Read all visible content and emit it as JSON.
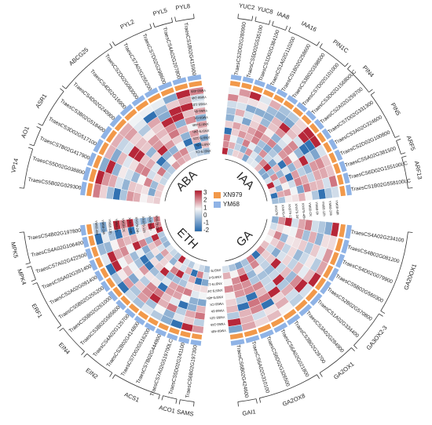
{
  "palette": {
    "low": "#2166ac",
    "mid": "#f7f7f7",
    "high": "#b2182b",
    "xn979": "#f2994a",
    "ym68": "#8fb3e6",
    "line": "#333333"
  },
  "legend": {
    "scale_ticks": [
      "3",
      "2",
      "1",
      "0",
      "-1",
      "-2"
    ],
    "cultivars": [
      {
        "label": "XN979",
        "color": "#f2994a"
      },
      {
        "label": "YM68",
        "color": "#8fb3e6"
      }
    ]
  },
  "segments": [
    {
      "name": "IAA",
      "start_deg": 0,
      "end_deg": 90,
      "samples": [
        "XN979-CK",
        "XN979-6h",
        "XN979-12h",
        "XN979-24h",
        "XN979-48h",
        "YM68-CK",
        "YM68-6h",
        "YM68-12h",
        "YM68-24h",
        "YM68-48h"
      ],
      "genes": [
        "TraesCS2D02G280900",
        "TraesCS5D02G535100",
        "TraesCS1D02G384100",
        "TraesCS1A02G110200",
        "TraesCS1B02G258600",
        "TraesCS3B02G598500",
        "TraesCS7D02G101000",
        "TraesCS3D02G156800LC",
        "TraesCS2A02G259700",
        "TraesCS7D02G331300",
        "TraesCS3A02G324600",
        "TraesCS2D02G100800",
        "TraesCS5A02G381500",
        "TraesCS6D02G155100LC",
        "TraesCS1B02G558100LC"
      ],
      "families": [
        {
          "label": "YUC2",
          "from": 0,
          "to": 0
        },
        {
          "label": "YUC8",
          "from": 1,
          "to": 1
        },
        {
          "label": "IAA8",
          "from": 2,
          "to": 2
        },
        {
          "label": "IAA16",
          "from": 3,
          "to": 4
        },
        {
          "label": "PIN1C",
          "from": 5,
          "to": 6
        },
        {
          "label": "PIN4",
          "from": 7,
          "to": 8
        },
        {
          "label": "PIN5",
          "from": 9,
          "to": 11
        },
        {
          "label": "ARF5",
          "from": 12,
          "to": 12
        },
        {
          "label": "ARF13",
          "from": 13,
          "to": 14
        }
      ]
    },
    {
      "name": "GA",
      "start_deg": 90,
      "end_deg": 180,
      "samples": [
        "XN979-CK",
        "XN979-6h",
        "XN979-12h",
        "XN979-24h",
        "XN979-48h",
        "YM68-CK",
        "YM68-6h",
        "YM68-12h",
        "YM68-24h",
        "YM68-48h"
      ],
      "genes": [
        "TraesCS4A02G234100",
        "TraesCS4B02G081200",
        "TraesCS4D02G079900",
        "TraesCS5B02G560300",
        "TraesCS2B02G570800",
        "TraesCS1A02G334400",
        "TraesCS3A02G284900",
        "TraesCS3B02G28700",
        "TraesCS6A02G021800",
        "TraesCS6D02G326500",
        "TraesCS6A02G310100",
        "TraesCS6B02G424600"
      ],
      "families": [
        {
          "label": "GA20OX1",
          "from": 0,
          "to": 3
        },
        {
          "label": "GA3OX2-3",
          "from": 4,
          "to": 5
        },
        {
          "label": "GA2OX1",
          "from": 6,
          "to": 7
        },
        {
          "label": "GA2OX8",
          "from": 8,
          "to": 10
        },
        {
          "label": "GAI1",
          "from": 11,
          "to": 11
        }
      ]
    },
    {
      "name": "ETH",
      "start_deg": 180,
      "end_deg": 270,
      "samples": [
        "XN979-CK",
        "XN979-6h",
        "XN979-12h",
        "XN979-24h",
        "XN979-48h",
        "YM68-CK",
        "YM68-6h",
        "YM68-12h",
        "YM68-24h",
        "YM68-48h"
      ],
      "genes": [
        "TraesCS6B02G197300",
        "TraesCS5D02G241100",
        "TraesCS7A02G519700LC",
        "TraesCS7B02G444900",
        "TraesCS7D02G516200",
        "TraesCS2B02G414800",
        "TraesCS4A02G125700",
        "TraesCS3B02G565600",
        "TraesCS5B02G261000",
        "TraesCS5B02G255200",
        "TraesCS2A02G091400",
        "TraesCS5A02G391400",
        "TraesCS7A02G422500",
        "TraesCS4A02G106400",
        "TraesCS4B02G197800"
      ],
      "families": [
        {
          "label": "SAMS",
          "from": 0,
          "to": 0
        },
        {
          "label": "ACO1",
          "from": 1,
          "to": 1
        },
        {
          "label": "ACS1",
          "from": 2,
          "to": 4
        },
        {
          "label": "EIN2",
          "from": 5,
          "to": 6
        },
        {
          "label": "EIN4",
          "from": 7,
          "to": 8
        },
        {
          "label": "ERF1",
          "from": 9,
          "to": 11
        },
        {
          "label": "MPK4",
          "from": 12,
          "to": 12
        },
        {
          "label": "MPK5",
          "from": 13,
          "to": 14
        }
      ]
    },
    {
      "name": "ABA",
      "start_deg": 270,
      "end_deg": 360,
      "samples": [
        "XN979-CK",
        "XN979-6h",
        "XN979-12h",
        "XN979-24h",
        "XN979-48h",
        "YM68-CK",
        "YM68-6h",
        "YM68-12h",
        "YM68-24h",
        "YM68-48h"
      ],
      "genes": [
        "TraesCS5B02G029300",
        "TraesCS5D02G038800",
        "TraesCS7B02G417900",
        "TraesCS3D02G517100",
        "TraesCS3B02G518400",
        "TraesCS4D02G240900",
        "TraesCS4D02G16900",
        "TraesCS2D02G083000",
        "TraesCS7A02G255200",
        "TraesCS7D02G298600",
        "TraesCS4A02G207800",
        "TraesCS1B02G415900"
      ],
      "families": [
        {
          "label": "VP14",
          "from": 0,
          "to": 1
        },
        {
          "label": "AO1",
          "from": 2,
          "to": 2
        },
        {
          "label": "ASR1",
          "from": 3,
          "to": 4
        },
        {
          "label": "ABCG25",
          "from": 5,
          "to": 7
        },
        {
          "label": "PYL2",
          "from": 8,
          "to": 9
        },
        {
          "label": "PYL5",
          "from": 10,
          "to": 10
        },
        {
          "label": "PYL8",
          "from": 11,
          "to": 11
        }
      ]
    }
  ]
}
